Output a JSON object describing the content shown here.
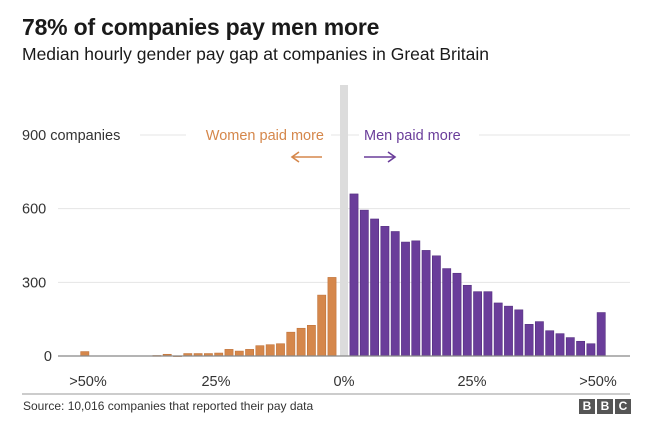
{
  "chart_data": {
    "type": "bar",
    "title": "78% of companies pay men more",
    "subtitle": "Median hourly gender pay gap at companies in Great Britain",
    "xlabel": "",
    "ylabel": "",
    "ylim": [
      0,
      900
    ],
    "yticks": [
      {
        "value": 0,
        "label": "0"
      },
      {
        "value": 300,
        "label": "300"
      },
      {
        "value": 600,
        "label": "600"
      },
      {
        "value": 900,
        "label": "900 companies"
      }
    ],
    "xticks": [
      {
        "pos": -50,
        "label": ">50%"
      },
      {
        "pos": -25,
        "label": "25%"
      },
      {
        "pos": 0,
        "label": "0%"
      },
      {
        "pos": 25,
        "label": "25%"
      },
      {
        "pos": 50,
        "label": ">50%"
      }
    ],
    "grid": true,
    "series": [
      {
        "name": "Women paid more",
        "color": "#d5874b",
        "bin_centers": [
          -50,
          -48,
          -46,
          -44,
          -42,
          -40,
          -38,
          -36,
          -34,
          -32,
          -30,
          -28,
          -26,
          -24,
          -22,
          -20,
          -18,
          -16,
          -14,
          -12,
          -10,
          -8,
          -6,
          -4,
          -2
        ],
        "values": [
          18,
          0,
          0,
          0,
          0,
          0,
          0,
          2,
          7,
          1,
          10,
          10,
          10,
          12,
          27,
          20,
          27,
          42,
          46,
          50,
          97,
          113,
          125,
          248,
          320
        ]
      },
      {
        "name": "Men paid more",
        "color": "#6a3d9a",
        "bin_centers": [
          2,
          4,
          6,
          8,
          10,
          12,
          14,
          16,
          18,
          20,
          22,
          24,
          26,
          28,
          30,
          32,
          34,
          36,
          38,
          40,
          42,
          44,
          46,
          48,
          50
        ],
        "values": [
          660,
          594,
          558,
          528,
          507,
          464,
          469,
          430,
          408,
          356,
          337,
          288,
          262,
          262,
          216,
          203,
          188,
          129,
          140,
          103,
          91,
          75,
          60,
          50,
          177
        ]
      }
    ],
    "annotations": [
      {
        "text": "Women paid more",
        "arrow": "left",
        "color": "#d5874b"
      },
      {
        "text": "Men paid more",
        "arrow": "right",
        "color": "#6a3d9a"
      }
    ],
    "zero_band_color": "#dcdcdc"
  },
  "footer": {
    "source": "Source: 10,016 companies that reported their pay data",
    "logo_letters": [
      "B",
      "B",
      "C"
    ]
  }
}
